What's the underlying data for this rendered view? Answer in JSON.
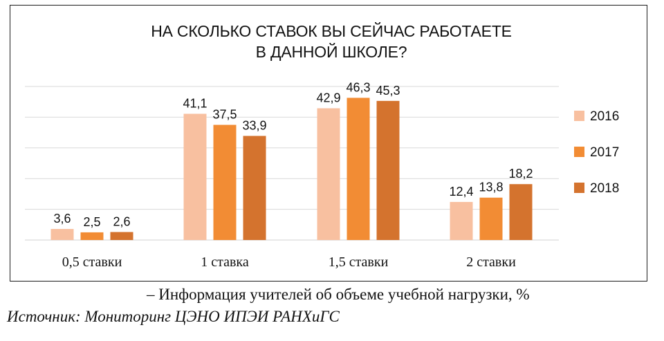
{
  "chart_data": {
    "type": "bar",
    "title_lines": [
      "НА СКОЛЬКО СТАВОК ВЫ СЕЙЧАС РАБОТАЕТЕ",
      "В ДАННОЙ ШКОЛЕ?"
    ],
    "categories": [
      "0,5 ставки",
      "1 ставка",
      "1,5 ставки",
      "2 ставки"
    ],
    "series": [
      {
        "name": "2016",
        "color": "#F8C0A0",
        "values": [
          3.6,
          41.1,
          42.9,
          12.4
        ],
        "labels": [
          "3,6",
          "41,1",
          "42,9",
          "12,4"
        ]
      },
      {
        "name": "2017",
        "color": "#F28C34",
        "values": [
          2.5,
          37.5,
          46.3,
          13.8
        ],
        "labels": [
          "2,5",
          "37,5",
          "46,3",
          "13,8"
        ]
      },
      {
        "name": "2018",
        "color": "#D4732E",
        "values": [
          2.6,
          33.9,
          45.3,
          18.2
        ],
        "labels": [
          "2,6",
          "33,9",
          "45,3",
          "18,2"
        ]
      }
    ],
    "ylim": [
      0,
      50
    ],
    "grid": true,
    "legend_position": "right"
  },
  "caption": "– Информация учителей об объеме учебной нагрузки, %",
  "source": "Источник: Мониторинг ЦЭНО ИПЭИ РАНХиГС"
}
